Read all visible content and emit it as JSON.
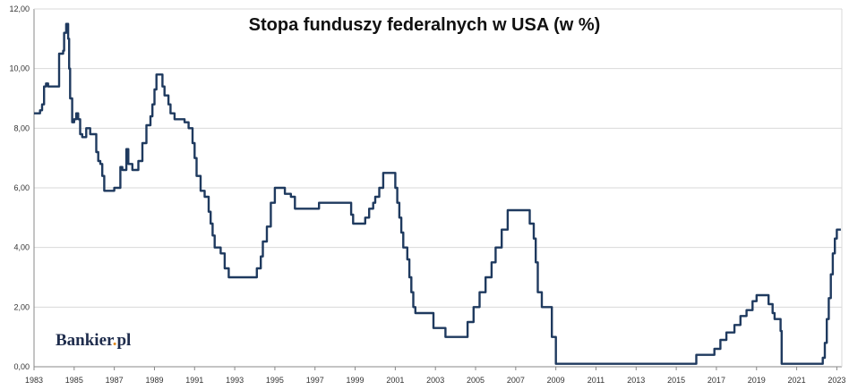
{
  "chart_data": {
    "type": "line",
    "title": "Stopa funduszy federalnych w USA (w %)",
    "xlabel": "",
    "ylabel": "",
    "xlim": [
      1983,
      2023.25
    ],
    "ylim": [
      0,
      12
    ],
    "grid": true,
    "y_ticks": [
      "0,00",
      "2,00",
      "4,00",
      "6,00",
      "8,00",
      "10,00",
      "12,00"
    ],
    "y_tick_values": [
      0,
      2,
      4,
      6,
      8,
      10,
      12
    ],
    "x_ticks": [
      "1983",
      "1985",
      "1987",
      "1989",
      "1991",
      "1993",
      "1995",
      "1997",
      "1999",
      "2001",
      "2003",
      "2005",
      "2007",
      "2009",
      "2011",
      "2013",
      "2015",
      "2017",
      "2019",
      "2021",
      "2023"
    ],
    "x_tick_values": [
      1983,
      1985,
      1987,
      1989,
      1991,
      1993,
      1995,
      1997,
      1999,
      2001,
      2003,
      2005,
      2007,
      2009,
      2011,
      2013,
      2015,
      2017,
      2019,
      2021,
      2023
    ],
    "series": [
      {
        "color": "#1f3a5f",
        "points": [
          [
            1983.0,
            8.5
          ],
          [
            1983.3,
            8.6
          ],
          [
            1983.4,
            8.8
          ],
          [
            1983.5,
            9.4
          ],
          [
            1983.6,
            9.5
          ],
          [
            1983.7,
            9.4
          ],
          [
            1984.0,
            9.4
          ],
          [
            1984.2,
            9.4
          ],
          [
            1984.25,
            10.5
          ],
          [
            1984.45,
            10.6
          ],
          [
            1984.5,
            11.2
          ],
          [
            1984.6,
            11.5
          ],
          [
            1984.7,
            11.0
          ],
          [
            1984.75,
            10.0
          ],
          [
            1984.8,
            9.0
          ],
          [
            1984.9,
            8.2
          ],
          [
            1985.0,
            8.3
          ],
          [
            1985.1,
            8.5
          ],
          [
            1985.2,
            8.3
          ],
          [
            1985.3,
            7.8
          ],
          [
            1985.4,
            7.7
          ],
          [
            1985.6,
            8.0
          ],
          [
            1985.8,
            7.8
          ],
          [
            1986.0,
            7.8
          ],
          [
            1986.1,
            7.2
          ],
          [
            1986.2,
            6.9
          ],
          [
            1986.3,
            6.8
          ],
          [
            1986.4,
            6.4
          ],
          [
            1986.5,
            5.9
          ],
          [
            1986.8,
            5.9
          ],
          [
            1987.0,
            6.0
          ],
          [
            1987.2,
            6.0
          ],
          [
            1987.3,
            6.7
          ],
          [
            1987.4,
            6.6
          ],
          [
            1987.6,
            7.3
          ],
          [
            1987.7,
            6.8
          ],
          [
            1987.9,
            6.6
          ],
          [
            1988.0,
            6.6
          ],
          [
            1988.2,
            6.9
          ],
          [
            1988.4,
            7.5
          ],
          [
            1988.6,
            8.1
          ],
          [
            1988.8,
            8.4
          ],
          [
            1988.9,
            8.8
          ],
          [
            1989.0,
            9.3
          ],
          [
            1989.1,
            9.8
          ],
          [
            1989.3,
            9.8
          ],
          [
            1989.4,
            9.4
          ],
          [
            1989.5,
            9.1
          ],
          [
            1989.7,
            8.8
          ],
          [
            1989.8,
            8.5
          ],
          [
            1990.0,
            8.3
          ],
          [
            1990.5,
            8.2
          ],
          [
            1990.7,
            8.0
          ],
          [
            1990.9,
            7.5
          ],
          [
            1991.0,
            7.0
          ],
          [
            1991.1,
            6.4
          ],
          [
            1991.3,
            5.9
          ],
          [
            1991.5,
            5.7
          ],
          [
            1991.7,
            5.2
          ],
          [
            1991.8,
            4.8
          ],
          [
            1991.9,
            4.4
          ],
          [
            1992.0,
            4.0
          ],
          [
            1992.3,
            3.8
          ],
          [
            1992.5,
            3.3
          ],
          [
            1992.7,
            3.0
          ],
          [
            1993.0,
            3.0
          ],
          [
            1994.0,
            3.0
          ],
          [
            1994.1,
            3.3
          ],
          [
            1994.3,
            3.7
          ],
          [
            1994.4,
            4.2
          ],
          [
            1994.6,
            4.7
          ],
          [
            1994.8,
            5.5
          ],
          [
            1995.0,
            6.0
          ],
          [
            1995.5,
            5.8
          ],
          [
            1995.8,
            5.7
          ],
          [
            1996.0,
            5.3
          ],
          [
            1997.0,
            5.3
          ],
          [
            1997.2,
            5.5
          ],
          [
            1998.0,
            5.5
          ],
          [
            1998.7,
            5.5
          ],
          [
            1998.8,
            5.1
          ],
          [
            1998.9,
            4.8
          ],
          [
            1999.5,
            5.0
          ],
          [
            1999.7,
            5.3
          ],
          [
            1999.9,
            5.5
          ],
          [
            2000.0,
            5.7
          ],
          [
            2000.2,
            6.0
          ],
          [
            2000.4,
            6.5
          ],
          [
            2000.9,
            6.5
          ],
          [
            2001.0,
            6.0
          ],
          [
            2001.1,
            5.5
          ],
          [
            2001.2,
            5.0
          ],
          [
            2001.3,
            4.5
          ],
          [
            2001.4,
            4.0
          ],
          [
            2001.6,
            3.6
          ],
          [
            2001.7,
            3.0
          ],
          [
            2001.8,
            2.5
          ],
          [
            2001.9,
            2.0
          ],
          [
            2002.0,
            1.8
          ],
          [
            2002.9,
            1.3
          ],
          [
            2003.5,
            1.0
          ],
          [
            2004.4,
            1.0
          ],
          [
            2004.6,
            1.5
          ],
          [
            2004.9,
            2.0
          ],
          [
            2005.2,
            2.5
          ],
          [
            2005.5,
            3.0
          ],
          [
            2005.8,
            3.5
          ],
          [
            2006.0,
            4.0
          ],
          [
            2006.3,
            4.6
          ],
          [
            2006.6,
            5.25
          ],
          [
            2007.5,
            5.25
          ],
          [
            2007.7,
            4.8
          ],
          [
            2007.9,
            4.3
          ],
          [
            2008.0,
            3.5
          ],
          [
            2008.1,
            2.5
          ],
          [
            2008.3,
            2.0
          ],
          [
            2008.8,
            1.0
          ],
          [
            2009.0,
            0.1
          ],
          [
            2015.9,
            0.1
          ],
          [
            2016.0,
            0.4
          ],
          [
            2016.9,
            0.6
          ],
          [
            2017.2,
            0.9
          ],
          [
            2017.5,
            1.15
          ],
          [
            2017.9,
            1.4
          ],
          [
            2018.2,
            1.7
          ],
          [
            2018.5,
            1.9
          ],
          [
            2018.8,
            2.2
          ],
          [
            2019.0,
            2.4
          ],
          [
            2019.5,
            2.4
          ],
          [
            2019.6,
            2.1
          ],
          [
            2019.8,
            1.8
          ],
          [
            2019.9,
            1.6
          ],
          [
            2020.2,
            1.2
          ],
          [
            2020.25,
            0.1
          ],
          [
            2022.2,
            0.1
          ],
          [
            2022.3,
            0.3
          ],
          [
            2022.4,
            0.8
          ],
          [
            2022.5,
            1.6
          ],
          [
            2022.6,
            2.3
          ],
          [
            2022.7,
            3.1
          ],
          [
            2022.8,
            3.8
          ],
          [
            2022.9,
            4.3
          ],
          [
            2023.0,
            4.6
          ],
          [
            2023.2,
            4.6
          ]
        ]
      }
    ]
  },
  "branding": {
    "logo_main": "Bankier",
    "logo_dot": ".",
    "logo_tld": "pl"
  }
}
